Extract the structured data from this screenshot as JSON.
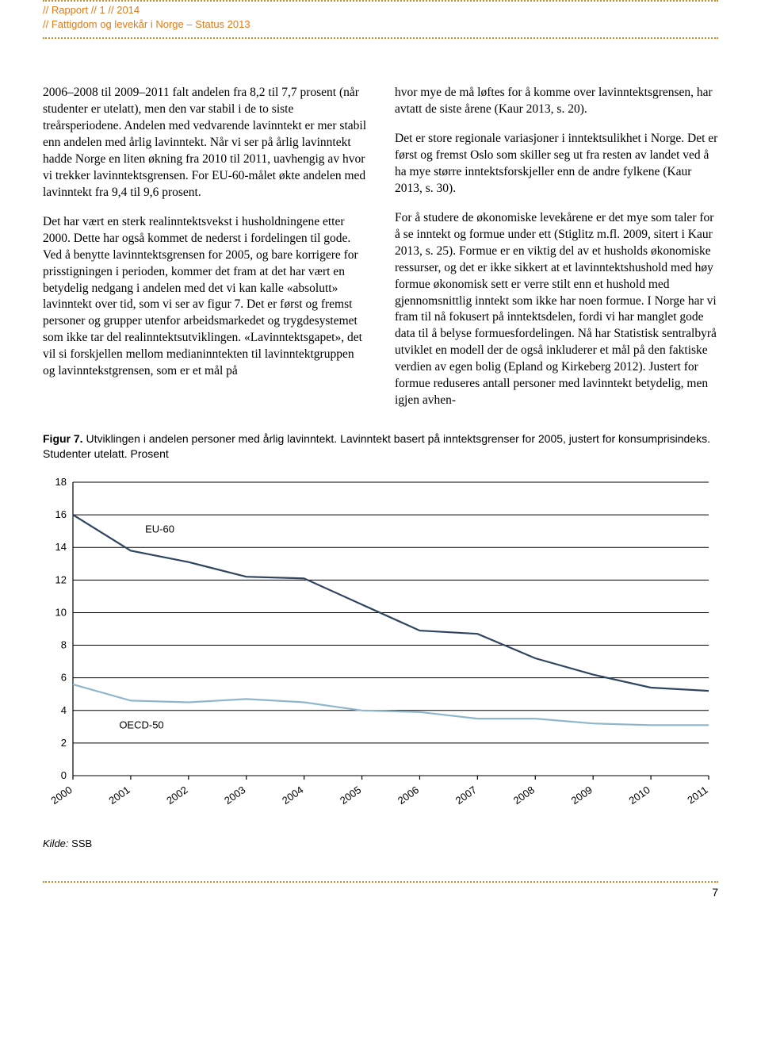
{
  "header": {
    "line1": "//  Rapport  //  1  //  2014",
    "line2": "//  Fattigdom og levekår i Norge – Status 2013"
  },
  "body": {
    "left": [
      "2006–2008 til 2009–2011 falt andelen fra 8,2 til 7,7 prosent (når studenter er utelatt), men den var stabil i de to siste treårsperiodene. Andelen med vedvarende lavinntekt er mer stabil enn andelen med årlig lavinntekt. Når vi ser på årlig lavinntekt hadde Norge en liten økning fra 2010 til 2011, uavhengig av hvor vi trekker lavinntektsgrensen. For EU-60-målet økte andelen med lavinntekt fra 9,4 til 9,6 prosent.",
      "Det har vært en sterk realinntektsvekst i husholdningene etter 2000. Dette har også kommet de nederst i fordelingen til gode. Ved å benytte lavinntektsgrensen for 2005, og bare korrigere for prisstigningen i perioden, kommer det fram at det har vært en betydelig nedgang i andelen med det vi kan kalle «absolutt» lavinntekt over tid, som vi ser av figur 7. Det er først og fremst personer og grupper utenfor arbeidsmarkedet og trygdesystemet som ikke tar del realinntektsutviklingen. «Lavinntektsgapet», det vil si forskjellen mellom medianinntekten til lavinntektgruppen og lavinntekstgrensen, som er et mål på"
    ],
    "right": [
      "hvor mye de må løftes for å komme over lavinntektsgrensen, har avtatt de siste årene (Kaur 2013, s. 20).",
      "Det er store regionale variasjoner i inntektsulikhet i Norge. Det er først og fremst Oslo som skiller seg ut fra resten av landet ved å ha mye større inntektsforskjeller enn de andre fylkene (Kaur 2013, s. 30).",
      "For å studere de økonomiske levekårene er det mye som taler for å se inntekt og formue under ett (Stiglitz m.fl. 2009, sitert i Kaur 2013, s. 25). Formue er en viktig del av et husholds økonomiske ressurser, og det er ikke sikkert at et lavinntektshushold med høy formue økonomisk sett er verre stilt enn et hushold med gjennomsnittlig inntekt som ikke har noen formue. I Norge har vi fram til nå fokusert på inntektsdelen, fordi vi har manglet gode data til å belyse formuesfordelingen. Nå har Statistisk sentralbyrå utviklet en modell der de også inkluderer et mål på den faktiske verdien av egen bolig (Epland og Kirkeberg 2012). Justert for formue reduseres antall personer med lavinntekt betydelig, men igjen avhen-"
    ]
  },
  "figure": {
    "label": "Figur 7.",
    "caption": "Utviklingen i andelen personer med årlig lavinntekt. Lavinntekt basert på inntektsgrenser for 2005, justert for konsumprisindeks. Studenter utelatt. Prosent",
    "chart": {
      "type": "line",
      "x_categories": [
        "2000",
        "2001",
        "2002",
        "2003",
        "2004",
        "2005",
        "2006",
        "2007",
        "2008",
        "2009",
        "2010",
        "2011"
      ],
      "ylim": [
        0,
        18
      ],
      "ytick_step": 2,
      "yticks": [
        0,
        2,
        4,
        6,
        8,
        10,
        12,
        14,
        16,
        18
      ],
      "grid_color": "#000000",
      "background_color": "#ffffff",
      "axis_fontsize": 13,
      "label_fontsize": 13,
      "line_width": 2.2,
      "series": [
        {
          "name": "EU-60",
          "label": "EU-60",
          "color": "#2f4560",
          "label_x_index": 1.25,
          "label_y": 14.9,
          "values": [
            16.0,
            13.8,
            13.1,
            12.2,
            12.1,
            10.5,
            8.9,
            8.7,
            7.2,
            6.2,
            5.4,
            5.2
          ]
        },
        {
          "name": "OECD-50",
          "label": "OECD-50",
          "color": "#8fb7cc",
          "label_x_index": 0.8,
          "label_y": 2.9,
          "values": [
            5.6,
            4.6,
            4.5,
            4.7,
            4.5,
            4.0,
            3.9,
            3.5,
            3.5,
            3.2,
            3.1,
            3.1
          ]
        }
      ]
    },
    "source_label": "Kilde:",
    "source_value": "SSB"
  },
  "page_number": "7"
}
